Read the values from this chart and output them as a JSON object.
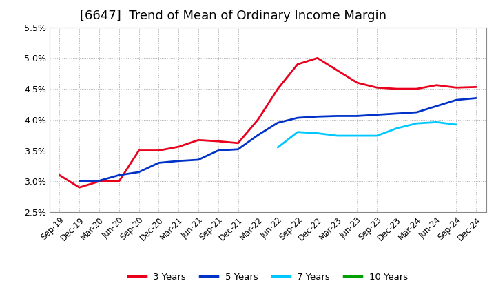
{
  "title": "[6647]  Trend of Mean of Ordinary Income Margin",
  "x_labels": [
    "Sep-19",
    "Dec-19",
    "Mar-20",
    "Jun-20",
    "Sep-20",
    "Dec-20",
    "Mar-21",
    "Jun-21",
    "Sep-21",
    "Dec-21",
    "Mar-22",
    "Jun-22",
    "Sep-22",
    "Dec-22",
    "Mar-23",
    "Jun-23",
    "Sep-23",
    "Dec-23",
    "Mar-24",
    "Jun-24",
    "Sep-24",
    "Dec-24"
  ],
  "ylim": [
    0.025,
    0.055
  ],
  "yticks": [
    0.025,
    0.03,
    0.035,
    0.04,
    0.045,
    0.05,
    0.055
  ],
  "y_3yr": [
    0.031,
    0.029,
    0.03,
    0.03,
    0.035,
    0.035,
    0.0356,
    0.0367,
    0.0365,
    0.0362,
    0.04,
    0.045,
    0.049,
    0.05,
    0.048,
    0.046,
    0.0452,
    0.045,
    0.045,
    0.0456,
    0.0452,
    0.0453
  ],
  "y_5yr": [
    null,
    0.03,
    0.0301,
    0.031,
    0.0315,
    0.033,
    0.0333,
    0.0335,
    0.035,
    0.0352,
    0.0375,
    0.0395,
    0.0403,
    0.0405,
    0.0406,
    0.0406,
    0.0408,
    0.041,
    0.0412,
    0.0422,
    0.0432,
    0.0435
  ],
  "y_7yr": [
    null,
    null,
    null,
    null,
    null,
    null,
    null,
    null,
    null,
    null,
    null,
    0.0355,
    0.038,
    0.0378,
    0.0374,
    0.0374,
    0.0374,
    0.0386,
    0.0394,
    0.0396,
    0.0392,
    null
  ],
  "y_10yr": [
    null,
    null,
    null,
    null,
    null,
    null,
    null,
    null,
    null,
    null,
    null,
    null,
    null,
    null,
    null,
    null,
    null,
    null,
    null,
    null,
    null,
    null
  ],
  "colors": [
    "#e8001c",
    "#0032c8",
    "#00c8ff",
    "#00a000"
  ],
  "legend_labels": [
    "3 Years",
    "5 Years",
    "7 Years",
    "10 Years"
  ],
  "background_color": "#ffffff",
  "grid_color": "#b0b0b0",
  "title_fontsize": 13,
  "tick_fontsize": 8.5,
  "linewidth": 2.0
}
